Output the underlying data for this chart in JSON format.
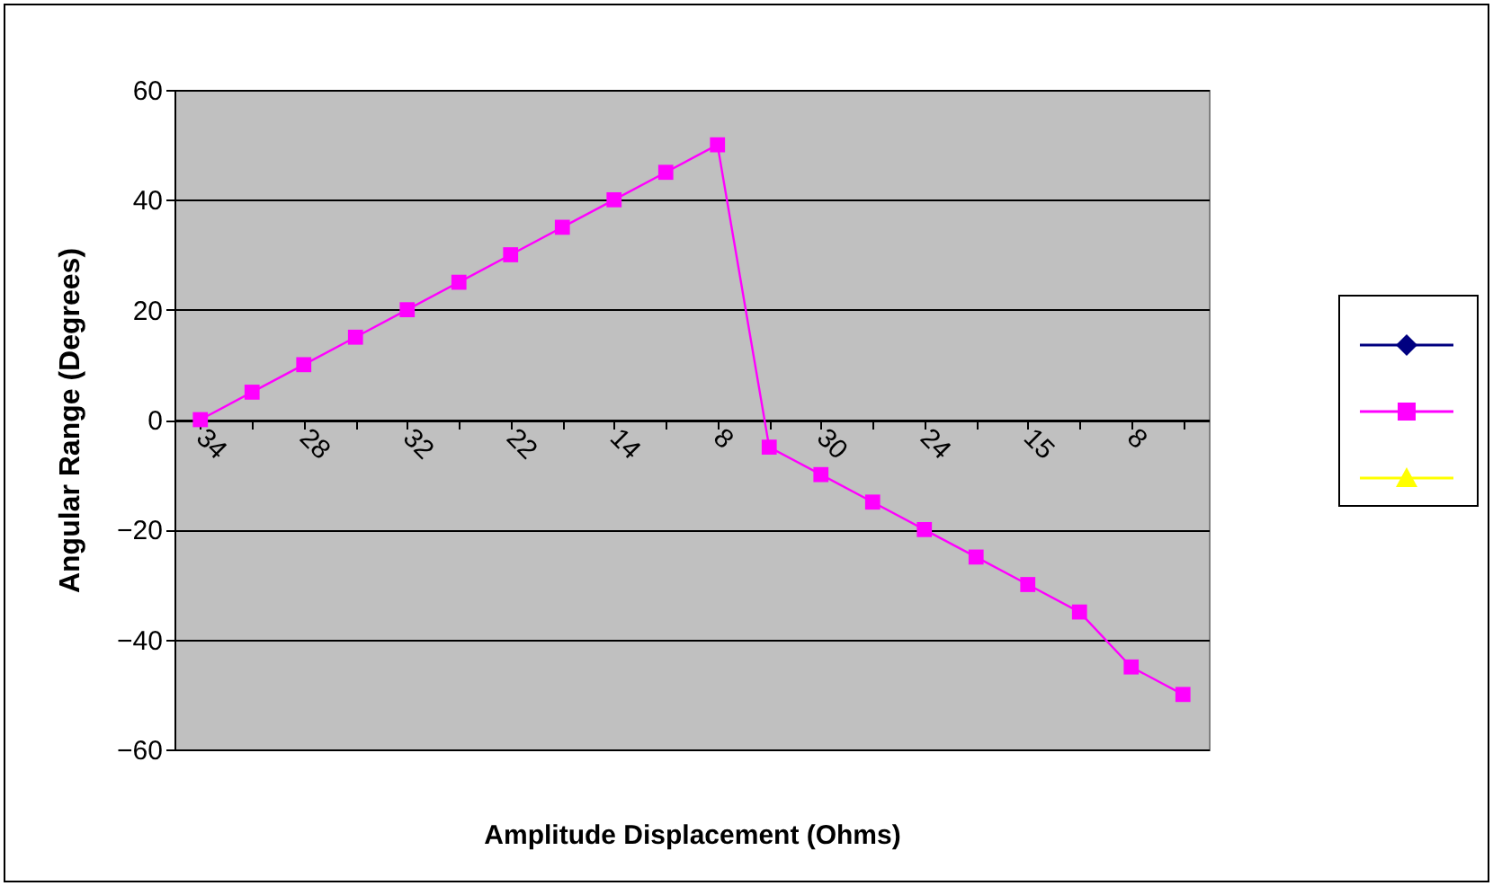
{
  "chart_data": {
    "type": "line",
    "xlabel": "Amplitude Displacement (Ohms)",
    "ylabel": "Angular Range (Degrees)",
    "categories": [
      "34",
      null,
      "28",
      null,
      "32",
      null,
      "22",
      null,
      "14",
      null,
      "8",
      null,
      "30",
      null,
      "24",
      null,
      "15",
      null,
      "8",
      null
    ],
    "series": [
      {
        "color": "#ff00ff",
        "marker": "square",
        "values": [
          0,
          5,
          10,
          15,
          20,
          25,
          30,
          35,
          40,
          45,
          50,
          -5,
          -10,
          -15,
          -20,
          -25,
          -30,
          -35,
          -45,
          -50
        ]
      }
    ],
    "ylim": [
      -60,
      60
    ],
    "yticks": [
      -60,
      -40,
      -20,
      0,
      20,
      40,
      60
    ],
    "grid": "y"
  }
}
